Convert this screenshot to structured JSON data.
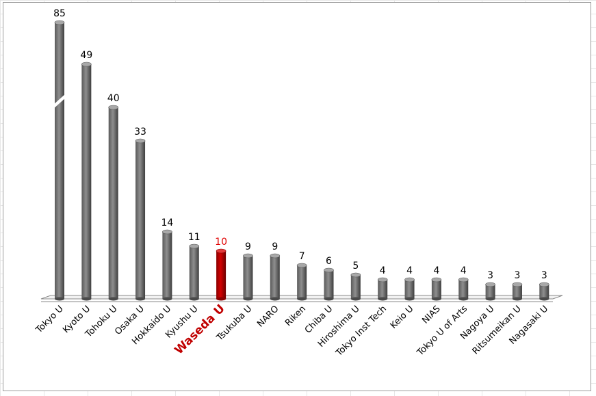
{
  "chart_data": {
    "type": "bar",
    "title": "",
    "xlabel": "",
    "ylabel": "",
    "axis_break": {
      "category": "Tokyo U",
      "note": "bar truncated with break symbol"
    },
    "grid": false,
    "legend": "none",
    "categories": [
      "Tokyo U",
      "Kyoto U",
      "Tohoku U",
      "Osaka U",
      "Hokkaido U",
      "Kyushu U",
      "Waseda U",
      "Tsukuba U",
      "NARO",
      "Riken",
      "Chiba U",
      "Hiroshima U",
      "Tokyo Inst Tech",
      "Keio U",
      "NIAS",
      "Tokyo U of Arts",
      "Nagoya U",
      "Ritsumeikan U",
      "Nagasaki U"
    ],
    "values": [
      85,
      49,
      40,
      33,
      14,
      11,
      10,
      9,
      9,
      7,
      6,
      5,
      4,
      4,
      4,
      4,
      3,
      3,
      3
    ],
    "highlight": {
      "category": "Waseda U",
      "bar_color": "#c00000",
      "label_color": "#e00000"
    },
    "colors": {
      "bar": "#808080",
      "bar_dark": "#4a4a4a",
      "highlight": "#c00000"
    }
  }
}
